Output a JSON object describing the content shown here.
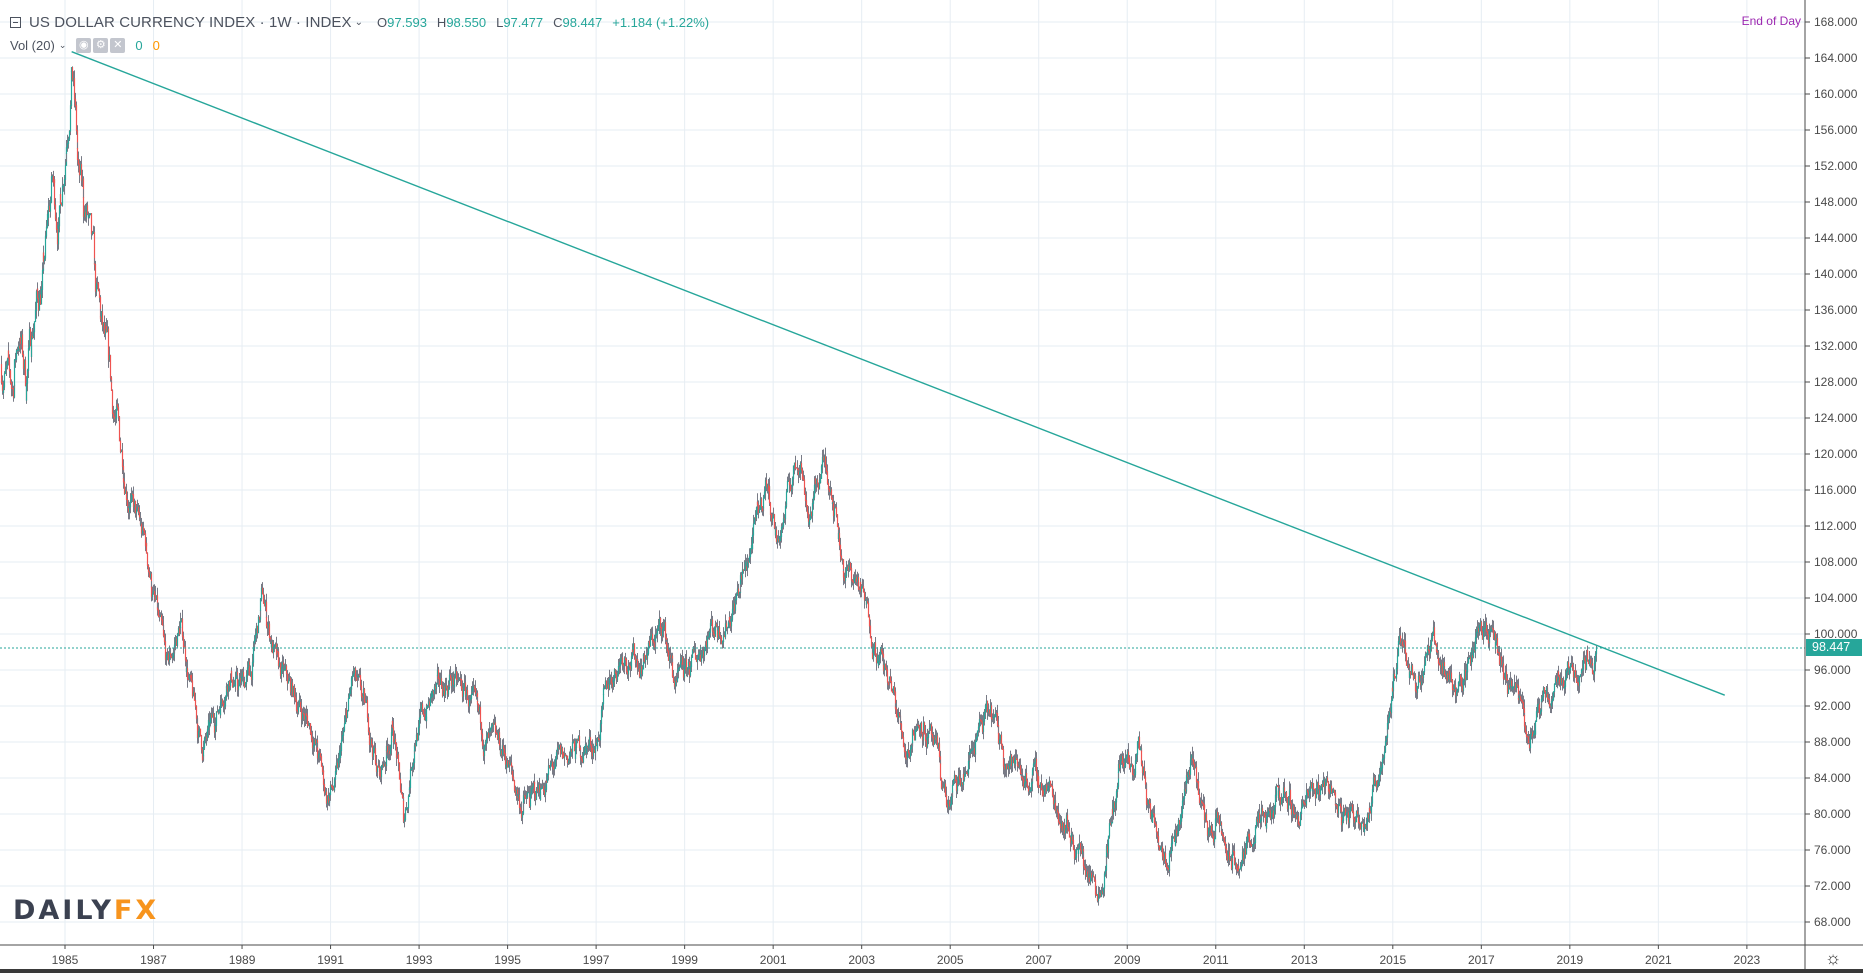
{
  "header": {
    "symbol": "US DOLLAR CURRENCY INDEX · 1W · INDEX",
    "open_label": "O",
    "open": "97.593",
    "high_label": "H",
    "high": "98.550",
    "low_label": "L",
    "low": "97.477",
    "close_label": "C",
    "close": "98.447",
    "change": "+1.184 (+1.22%)"
  },
  "volume": {
    "label": "Vol (20)",
    "value_up": "0",
    "value_down": "0"
  },
  "session_label": "End of Day",
  "last_price_tag": "98.447",
  "logo": {
    "part1": "DAILY",
    "part2": "FX"
  },
  "colors": {
    "up": "#26a69a",
    "down": "#ef5350",
    "wick": "#787b86",
    "trendline": "#26a69a",
    "grid": "#e6edf3",
    "axis": "#4a4a4a"
  },
  "chart_data": {
    "type": "candlestick",
    "title": "US DOLLAR CURRENCY INDEX · 1W · INDEX",
    "xlabel": "",
    "ylabel": "",
    "ylim": [
      66,
      170
    ],
    "y_ticks": [
      68,
      72,
      76,
      80,
      84,
      88,
      92,
      96,
      100,
      104,
      108,
      112,
      116,
      120,
      124,
      128,
      132,
      136,
      140,
      144,
      148,
      152,
      156,
      160,
      164,
      168
    ],
    "x_ticks": [
      "1985",
      "1987",
      "1989",
      "1991",
      "1993",
      "1995",
      "1997",
      "1999",
      "2001",
      "2003",
      "2005",
      "2007",
      "2009",
      "2011",
      "2013",
      "2015",
      "2017",
      "2019",
      "2021",
      "2023"
    ],
    "grid": true,
    "last_price": 98.447,
    "series_anchor_points": [
      {
        "t": 1983.55,
        "p": 130
      },
      {
        "t": 1983.8,
        "p": 127
      },
      {
        "t": 1983.95,
        "p": 134
      },
      {
        "t": 1984.1,
        "p": 128
      },
      {
        "t": 1984.3,
        "p": 136
      },
      {
        "t": 1984.5,
        "p": 140
      },
      {
        "t": 1984.7,
        "p": 150
      },
      {
        "t": 1984.85,
        "p": 146
      },
      {
        "t": 1985.0,
        "p": 155
      },
      {
        "t": 1985.15,
        "p": 164
      },
      {
        "t": 1985.3,
        "p": 150
      },
      {
        "t": 1985.5,
        "p": 146
      },
      {
        "t": 1985.7,
        "p": 137
      },
      {
        "t": 1986.0,
        "p": 128
      },
      {
        "t": 1986.4,
        "p": 116
      },
      {
        "t": 1986.8,
        "p": 110
      },
      {
        "t": 1987.0,
        "p": 104
      },
      {
        "t": 1987.3,
        "p": 96
      },
      {
        "t": 1987.6,
        "p": 101
      },
      {
        "t": 1987.9,
        "p": 92
      },
      {
        "t": 1988.1,
        "p": 87
      },
      {
        "t": 1988.4,
        "p": 91
      },
      {
        "t": 1988.7,
        "p": 96
      },
      {
        "t": 1988.9,
        "p": 94
      },
      {
        "t": 1989.2,
        "p": 96
      },
      {
        "t": 1989.45,
        "p": 104
      },
      {
        "t": 1989.8,
        "p": 96
      },
      {
        "t": 1990.2,
        "p": 93
      },
      {
        "t": 1990.6,
        "p": 89
      },
      {
        "t": 1990.9,
        "p": 82
      },
      {
        "t": 1991.1,
        "p": 83
      },
      {
        "t": 1991.5,
        "p": 95
      },
      {
        "t": 1991.8,
        "p": 91
      },
      {
        "t": 1992.1,
        "p": 84
      },
      {
        "t": 1992.4,
        "p": 90
      },
      {
        "t": 1992.65,
        "p": 79
      },
      {
        "t": 1992.9,
        "p": 89
      },
      {
        "t": 1993.3,
        "p": 93
      },
      {
        "t": 1993.7,
        "p": 95
      },
      {
        "t": 1994.1,
        "p": 93
      },
      {
        "t": 1994.5,
        "p": 88
      },
      {
        "t": 1994.9,
        "p": 87
      },
      {
        "t": 1995.3,
        "p": 81
      },
      {
        "t": 1995.6,
        "p": 82
      },
      {
        "t": 1996.0,
        "p": 85
      },
      {
        "t": 1996.5,
        "p": 87
      },
      {
        "t": 1997.0,
        "p": 88
      },
      {
        "t": 1997.3,
        "p": 95
      },
      {
        "t": 1997.6,
        "p": 98
      },
      {
        "t": 1998.0,
        "p": 97
      },
      {
        "t": 1998.5,
        "p": 101
      },
      {
        "t": 1998.8,
        "p": 94
      },
      {
        "t": 1999.2,
        "p": 97
      },
      {
        "t": 1999.6,
        "p": 101
      },
      {
        "t": 1999.9,
        "p": 101
      },
      {
        "t": 2000.3,
        "p": 106
      },
      {
        "t": 2000.6,
        "p": 112
      },
      {
        "t": 2000.85,
        "p": 117
      },
      {
        "t": 2001.1,
        "p": 110
      },
      {
        "t": 2001.4,
        "p": 117
      },
      {
        "t": 2001.6,
        "p": 120
      },
      {
        "t": 2001.8,
        "p": 113
      },
      {
        "t": 2002.1,
        "p": 119
      },
      {
        "t": 2002.3,
        "p": 117
      },
      {
        "t": 2002.6,
        "p": 107
      },
      {
        "t": 2002.9,
        "p": 106
      },
      {
        "t": 2003.3,
        "p": 99
      },
      {
        "t": 2003.7,
        "p": 93
      },
      {
        "t": 2004.0,
        "p": 87
      },
      {
        "t": 2004.3,
        "p": 91
      },
      {
        "t": 2004.7,
        "p": 86
      },
      {
        "t": 2004.95,
        "p": 81
      },
      {
        "t": 2005.3,
        "p": 84
      },
      {
        "t": 2005.6,
        "p": 89
      },
      {
        "t": 2005.9,
        "p": 91
      },
      {
        "t": 2006.3,
        "p": 86
      },
      {
        "t": 2006.8,
        "p": 84
      },
      {
        "t": 2007.2,
        "p": 83
      },
      {
        "t": 2007.6,
        "p": 79
      },
      {
        "t": 2007.9,
        "p": 76
      },
      {
        "t": 2008.2,
        "p": 73
      },
      {
        "t": 2008.4,
        "p": 72
      },
      {
        "t": 2008.6,
        "p": 78
      },
      {
        "t": 2008.85,
        "p": 86
      },
      {
        "t": 2009.1,
        "p": 84
      },
      {
        "t": 2009.25,
        "p": 88
      },
      {
        "t": 2009.5,
        "p": 80
      },
      {
        "t": 2009.9,
        "p": 76
      },
      {
        "t": 2010.2,
        "p": 80
      },
      {
        "t": 2010.45,
        "p": 87
      },
      {
        "t": 2010.8,
        "p": 78
      },
      {
        "t": 2011.0,
        "p": 79
      },
      {
        "t": 2011.3,
        "p": 75
      },
      {
        "t": 2011.55,
        "p": 74
      },
      {
        "t": 2011.8,
        "p": 78
      },
      {
        "t": 2012.2,
        "p": 79
      },
      {
        "t": 2012.5,
        "p": 83
      },
      {
        "t": 2012.8,
        "p": 80
      },
      {
        "t": 2013.2,
        "p": 82
      },
      {
        "t": 2013.5,
        "p": 84
      },
      {
        "t": 2013.8,
        "p": 80
      },
      {
        "t": 2014.2,
        "p": 80
      },
      {
        "t": 2014.5,
        "p": 81
      },
      {
        "t": 2014.8,
        "p": 88
      },
      {
        "t": 2015.0,
        "p": 95
      },
      {
        "t": 2015.2,
        "p": 99
      },
      {
        "t": 2015.5,
        "p": 95
      },
      {
        "t": 2015.9,
        "p": 99
      },
      {
        "t": 2016.2,
        "p": 96
      },
      {
        "t": 2016.4,
        "p": 94
      },
      {
        "t": 2016.7,
        "p": 96
      },
      {
        "t": 2016.95,
        "p": 102
      },
      {
        "t": 2017.2,
        "p": 100
      },
      {
        "t": 2017.5,
        "p": 95
      },
      {
        "t": 2017.8,
        "p": 93
      },
      {
        "t": 2018.0,
        "p": 90
      },
      {
        "t": 2018.2,
        "p": 89
      },
      {
        "t": 2018.4,
        "p": 92
      },
      {
        "t": 2018.7,
        "p": 95
      },
      {
        "t": 2018.95,
        "p": 96
      },
      {
        "t": 2019.2,
        "p": 96.5
      },
      {
        "t": 2019.4,
        "p": 97.5
      },
      {
        "t": 2019.6,
        "p": 98.4
      }
    ],
    "trendline": {
      "start": {
        "t": 1985.15,
        "p": 164.7
      },
      "end": {
        "t": 2022.5,
        "p": 93.2
      }
    }
  }
}
